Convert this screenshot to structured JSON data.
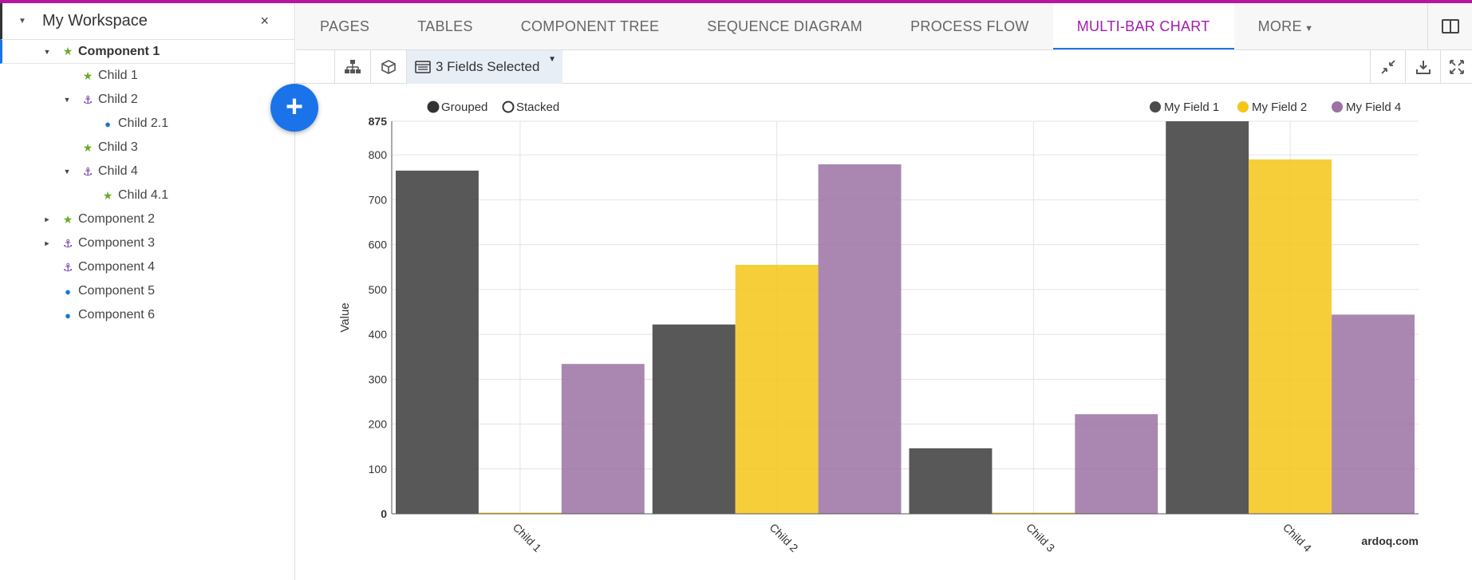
{
  "sidebar": {
    "workspace_title": "My Workspace",
    "close_label": "×",
    "items": [
      {
        "label": "Component 1",
        "icon": "star-icon",
        "toggle": "▼",
        "level": 0,
        "selected": true
      },
      {
        "label": "Child 1",
        "icon": "star-icon",
        "toggle": "",
        "level": 1
      },
      {
        "label": "Child 2",
        "icon": "anchor-icon",
        "toggle": "▼",
        "level": 1
      },
      {
        "label": "Child 2.1",
        "icon": "apple-icon",
        "toggle": "",
        "level": 2
      },
      {
        "label": "Child 3",
        "icon": "star-icon",
        "toggle": "",
        "level": 1
      },
      {
        "label": "Child 4",
        "icon": "anchor-icon",
        "toggle": "▼",
        "level": 1
      },
      {
        "label": "Child 4.1",
        "icon": "star-icon",
        "toggle": "",
        "level": 2
      },
      {
        "label": "Component 2",
        "icon": "star-icon",
        "toggle": "►",
        "level": 0
      },
      {
        "label": "Component 3",
        "icon": "anchor-icon",
        "toggle": "►",
        "level": 0
      },
      {
        "label": "Component 4",
        "icon": "anchor-icon",
        "toggle": "",
        "level": 0
      },
      {
        "label": "Component 5",
        "icon": "apple-icon",
        "toggle": "",
        "level": 0
      },
      {
        "label": "Component 6",
        "icon": "apple-icon",
        "toggle": "",
        "level": 0
      }
    ]
  },
  "fab_label": "+",
  "tabs": [
    {
      "label": "PAGES"
    },
    {
      "label": "TABLES"
    },
    {
      "label": "COMPONENT TREE"
    },
    {
      "label": "SEQUENCE DIAGRAM"
    },
    {
      "label": "PROCESS FLOW"
    },
    {
      "label": "MULTI-BAR CHART",
      "active": true
    },
    {
      "label": "MORE",
      "dropdown": true
    }
  ],
  "toolbar": {
    "fields_label": "3 Fields Selected",
    "left_icons": [
      "hierarchy-icon",
      "cube-icon"
    ],
    "right_icons": [
      "collapse-icon",
      "download-icon",
      "expand-icon"
    ]
  },
  "chart_data": {
    "type": "bar",
    "mode_options": [
      "Grouped",
      "Stacked"
    ],
    "selected_mode": "Grouped",
    "categories": [
      "Child 1",
      "Child 2",
      "Child 3",
      "Child 4"
    ],
    "series": [
      {
        "name": "My Field 1",
        "color": "#4a4a4a",
        "values": [
          765,
          422,
          146,
          875
        ]
      },
      {
        "name": "My Field 2",
        "color": "#f5c518",
        "values": [
          0,
          555,
          0,
          790
        ]
      },
      {
        "name": "My Field 4",
        "color": "#9b72a3",
        "values": [
          334,
          779,
          222,
          444
        ]
      }
    ],
    "ylabel": "Value",
    "ylim": [
      0,
      875
    ],
    "yticks": [
      0,
      100,
      200,
      300,
      400,
      500,
      600,
      700,
      800,
      875
    ],
    "grid": true,
    "legend_position": "top-right",
    "watermark": "ardoq.com"
  },
  "colors": {
    "accent": "#a21caf",
    "primary": "#1a73e8"
  }
}
